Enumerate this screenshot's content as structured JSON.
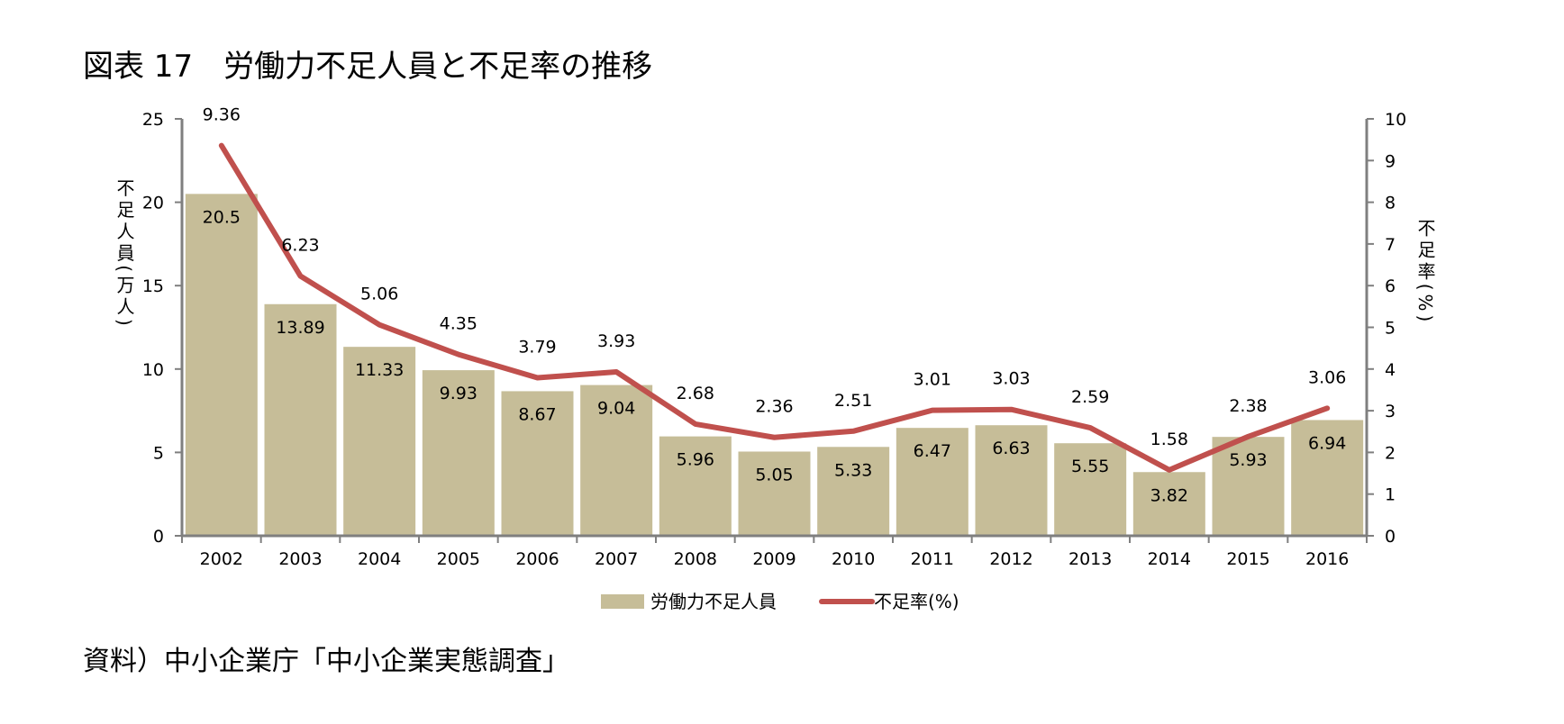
{
  "title": "図表 17　労働力不足人員と不足率の推移",
  "source": "資料）中小企業庁「中小企業実態調査」",
  "colors": {
    "bar": "#c6bd98",
    "line": "#c0504d",
    "axis": "#7f7f7f",
    "text": "#000000"
  },
  "chart_data": {
    "type": "bar",
    "categories": [
      "2002",
      "2003",
      "2004",
      "2005",
      "2006",
      "2007",
      "2008",
      "2009",
      "2010",
      "2011",
      "2012",
      "2013",
      "2014",
      "2015",
      "2016"
    ],
    "series": [
      {
        "name": "労働力不足人員",
        "type": "bar",
        "axis": "left",
        "values": [
          20.5,
          13.89,
          11.33,
          9.93,
          8.67,
          9.04,
          5.96,
          5.05,
          5.33,
          6.47,
          6.63,
          5.55,
          3.82,
          5.93,
          6.94
        ],
        "labels": [
          "20.5",
          "13.89",
          "11.33",
          "9.93",
          "8.67",
          "9.04",
          "5.96",
          "5.05",
          "5.33",
          "6.47",
          "6.63",
          "5.55",
          "3.82",
          "5.93",
          "6.94"
        ]
      },
      {
        "name": "不足率(%)",
        "type": "line",
        "axis": "right",
        "values": [
          9.36,
          6.23,
          5.06,
          4.35,
          3.79,
          3.93,
          2.68,
          2.36,
          2.51,
          3.01,
          3.03,
          2.59,
          1.58,
          2.38,
          3.06
        ],
        "labels": [
          "9.36",
          "6.23",
          "5.06",
          "4.35",
          "3.79",
          "3.93",
          "2.68",
          "2.36",
          "2.51",
          "3.01",
          "3.03",
          "2.59",
          "1.58",
          "2.38",
          "3.06"
        ]
      }
    ],
    "ylabel_left": "不足人員(万人)",
    "ylabel_right": "不足率(%)",
    "ylim_left": [
      0,
      25
    ],
    "yticks_left": [
      "0",
      "5",
      "10",
      "15",
      "20",
      "25"
    ],
    "ylim_right": [
      0,
      10
    ],
    "yticks_right": [
      "0",
      "1",
      "2",
      "3",
      "4",
      "5",
      "6",
      "7",
      "8",
      "9",
      "10"
    ],
    "grid": false,
    "legend_position": "bottom"
  }
}
